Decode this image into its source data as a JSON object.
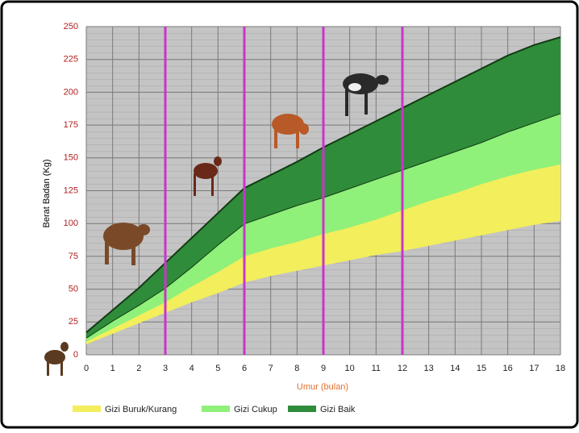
{
  "chart_data": {
    "type": "range-area",
    "x_label": "Umur (bulan)",
    "y_label": "Berat Badan (Kg)",
    "x": [
      0,
      1,
      2,
      3,
      4,
      5,
      6,
      7,
      8,
      9,
      10,
      11,
      12,
      13,
      14,
      15,
      16,
      17,
      18
    ],
    "xlim": [
      0,
      18
    ],
    "xticks": [
      0,
      1,
      2,
      3,
      4,
      5,
      6,
      7,
      8,
      9,
      10,
      11,
      12,
      13,
      14,
      15,
      16,
      17,
      18
    ],
    "ylim": [
      0,
      250
    ],
    "yticks": [
      0,
      25,
      50,
      75,
      100,
      125,
      150,
      175,
      200,
      225,
      250
    ],
    "grid": true,
    "vlines": [
      3,
      6,
      9,
      12
    ],
    "vline_color": "#cc33cc",
    "series": [
      {
        "name": "Gizi Buruk/Kurang",
        "color": "#f2ee5c",
        "low": [
          8,
          16,
          24,
          32,
          40,
          47,
          55,
          60,
          64,
          68,
          72,
          76,
          79,
          83,
          87,
          91,
          95,
          99,
          102
        ],
        "high": [
          10,
          20,
          30,
          40,
          52,
          63,
          75,
          81,
          86,
          92,
          97,
          103,
          110,
          117,
          123,
          130,
          136,
          141,
          145
        ]
      },
      {
        "name": "Gizi Cukup",
        "color": "#8ff07a",
        "low": [
          10,
          20,
          30,
          40,
          52,
          63,
          75,
          81,
          86,
          92,
          97,
          103,
          110,
          117,
          123,
          130,
          136,
          141,
          145
        ],
        "high": [
          13,
          26,
          38,
          51,
          67,
          84,
          100,
          107,
          114,
          120,
          127,
          134,
          141,
          148,
          155,
          162,
          170,
          177,
          184
        ]
      },
      {
        "name": "Gizi Baik",
        "color": "#2f8c3a",
        "low": [
          13,
          26,
          38,
          51,
          67,
          84,
          100,
          107,
          114,
          120,
          127,
          134,
          141,
          148,
          155,
          162,
          170,
          177,
          184
        ],
        "high": [
          17,
          34,
          51,
          70,
          89,
          108,
          127,
          137,
          147,
          158,
          168,
          178,
          188,
          198,
          208,
          218,
          228,
          236,
          242
        ]
      }
    ]
  }
}
